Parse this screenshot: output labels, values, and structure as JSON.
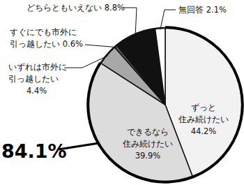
{
  "chart_data": {
    "type": "pie",
    "categories": [
      "ずっと\n住み続けたい",
      "できるなら\n住み続けたい",
      "いずれは市外に\n引っ越したい",
      "すぐにでも市外に\n引っ越したい",
      "どちらともいえない",
      "無回答"
    ],
    "values": [
      44.2,
      39.9,
      4.4,
      0.6,
      8.8,
      2.1
    ],
    "value_labels": [
      "44.2%",
      "39.9%",
      "4.4%",
      "0.6%",
      "8.8%",
      "2.1%"
    ],
    "colors": [
      "#f2f2f2",
      "#dcdcdc",
      "#a8a8a8",
      "#555555",
      "#111111",
      "#ffffff"
    ],
    "data_labels": true,
    "annotations": [
      {
        "value": 84.1,
        "label": "84.1%"
      }
    ]
  }
}
